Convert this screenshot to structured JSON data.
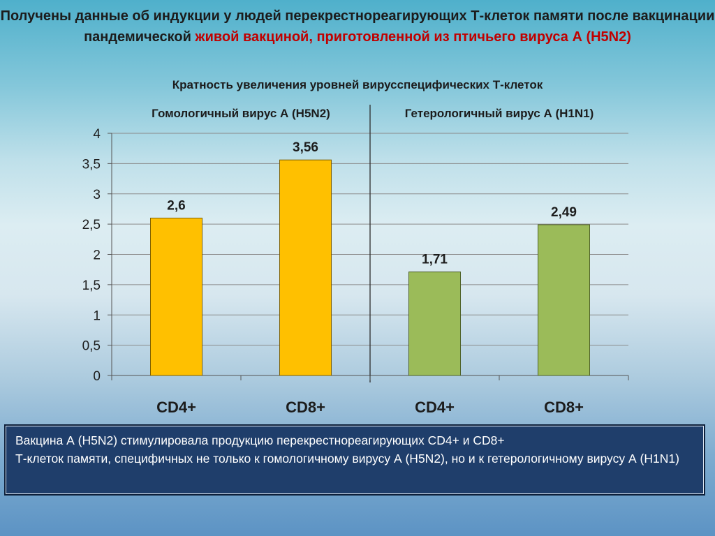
{
  "title": {
    "part1": "Получены данные об индукции у людей перекрестнореагирующих Т-клеток памяти после вакцинации пандемической ",
    "highlight": "живой вакциной, приготовленной из птичьего вируса А (H5N2)"
  },
  "colors": {
    "homologous": "#ffc000",
    "heterologous": "#9bbb59",
    "highlight": "#c00000",
    "conclusion_bg": "#1f3e6b"
  },
  "chart_data": {
    "type": "bar",
    "title": "Кратность увеличения уровней вирусспецифических Т-клеток",
    "groups": [
      "Гомологичный вирус А (H5N2)",
      "Гетерологичный вирус А (H1N1)"
    ],
    "categories": [
      "CD4+",
      "CD8+",
      "CD4+",
      "CD8+"
    ],
    "values": [
      2.6,
      3.56,
      1.71,
      2.49
    ],
    "value_labels": [
      "2,6",
      "3,56",
      "1,71",
      "2,49"
    ],
    "group_index": [
      0,
      0,
      1,
      1
    ],
    "yticks": [
      "0",
      "0,5",
      "1",
      "1,5",
      "2",
      "2,5",
      "3",
      "3,5",
      "4"
    ],
    "ylim": [
      0,
      4
    ],
    "grid": true
  },
  "conclusion": {
    "line1": "Вакцина А (H5N2) стимулировала продукцию перекрестнореагирующих  CD4+ и CD8+",
    "line2": "Т-клеток памяти, специфичных не только к гомологичному вирусу А (H5N2), но и к гетерологичному вирусу А (H1N1)"
  }
}
